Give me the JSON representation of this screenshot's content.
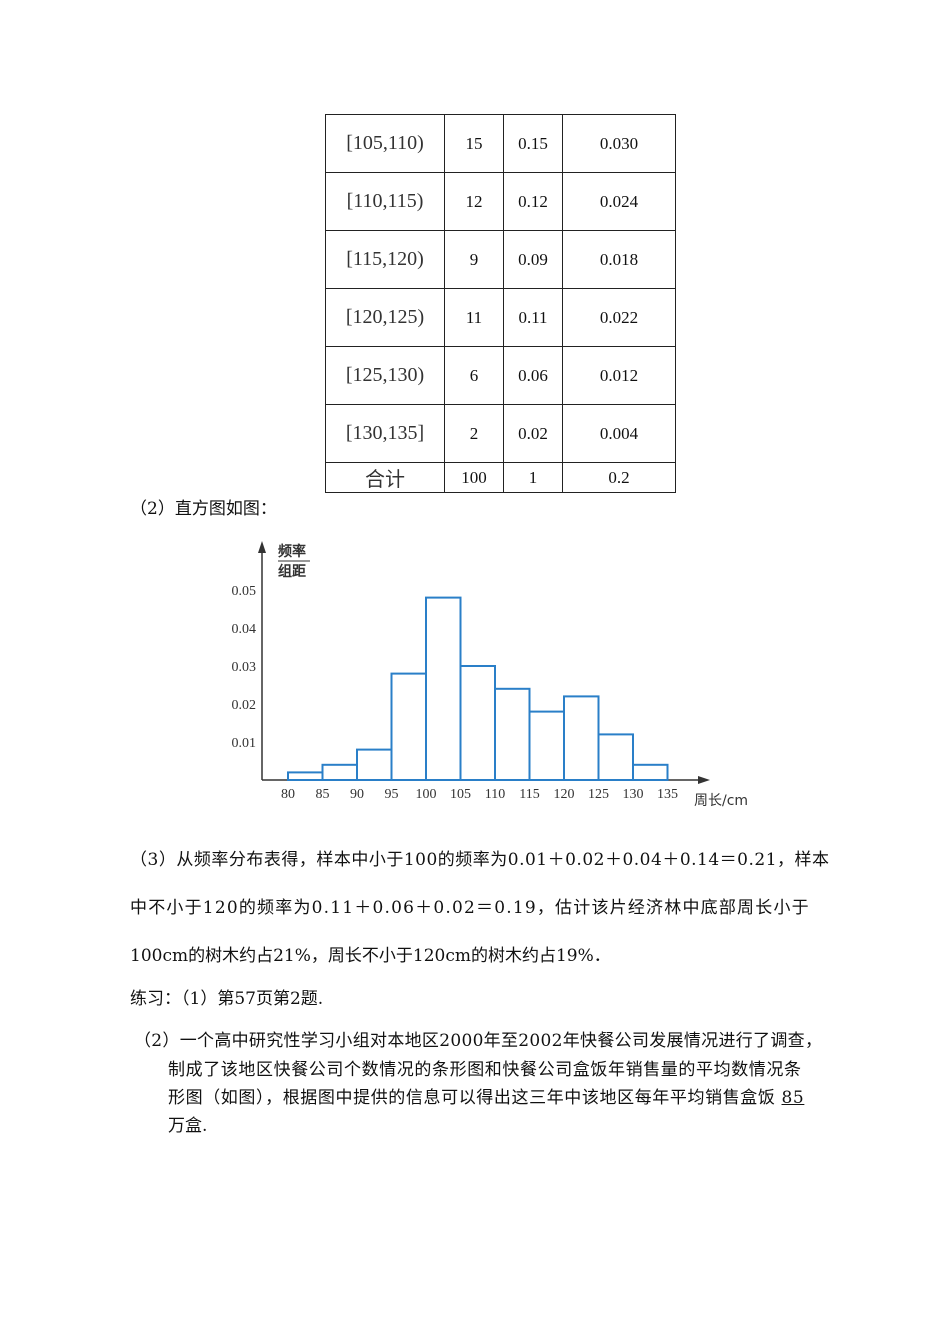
{
  "table": {
    "rows": [
      [
        "[105,110)",
        "15",
        "0.15",
        "0.030"
      ],
      [
        "[110,115)",
        "12",
        "0.12",
        "0.024"
      ],
      [
        "[115,120)",
        "9",
        "0.09",
        "0.018"
      ],
      [
        "[120,125)",
        "11",
        "0.11",
        "0.022"
      ],
      [
        "[125,130)",
        "6",
        "0.06",
        "0.012"
      ],
      [
        "[130,135]",
        "2",
        "0.02",
        "0.004"
      ]
    ],
    "total": [
      "合计",
      "100",
      "1",
      "0.2"
    ]
  },
  "part2_label": "（2）直方图如图：",
  "chart_data": {
    "type": "bar",
    "ylabel_top": "频率",
    "ylabel_bottom": "组距",
    "xlabel": "周长/cm",
    "x_ticks": [
      "80",
      "85",
      "90",
      "95",
      "100",
      "105",
      "110",
      "115",
      "120",
      "125",
      "130",
      "135"
    ],
    "y_ticks": [
      "0.01",
      "0.02",
      "0.03",
      "0.04",
      "0.05"
    ],
    "bins": [
      [
        80,
        85
      ],
      [
        85,
        90
      ],
      [
        90,
        95
      ],
      [
        95,
        100
      ],
      [
        100,
        105
      ],
      [
        105,
        110
      ],
      [
        110,
        115
      ],
      [
        115,
        120
      ],
      [
        120,
        125
      ],
      [
        125,
        130
      ],
      [
        130,
        135
      ]
    ],
    "values": [
      0.002,
      0.004,
      0.008,
      0.028,
      0.048,
      0.03,
      0.024,
      0.018,
      0.022,
      0.012,
      0.004
    ],
    "ylim": [
      0,
      0.055
    ],
    "xlim": [
      75,
      140
    ],
    "bar_color": "#2a7fc8",
    "grid": false
  },
  "part3": {
    "line1": "（3）从频率分布表得，样本中小于100的频率为0.01＋0.02＋0.04＋0.14＝0.21，样本",
    "line2": "中不小于120的频率为0.11＋0.06＋0.02＝0.19，估计该片经济林中底部周长小于",
    "line3": "100cm的树木约占21%，周长不小于120cm的树木约占19%．"
  },
  "exercise": {
    "line1": "练习：（1）第57页第2题.",
    "p2_line1": "（2）一个高中研究性学习小组对本地区2000年至2002年快餐公司发展情况进行了调查，",
    "p2_line2": "制成了该地区快餐公司个数情况的条形图和快餐公司盒饭年销售量的平均数情况条",
    "p2_line3": "形图（如图），根据图中提供的信息可以得出这三年中该地区每年平均销售盒饭",
    "answer": "85",
    "p2_line4": "万盒."
  }
}
